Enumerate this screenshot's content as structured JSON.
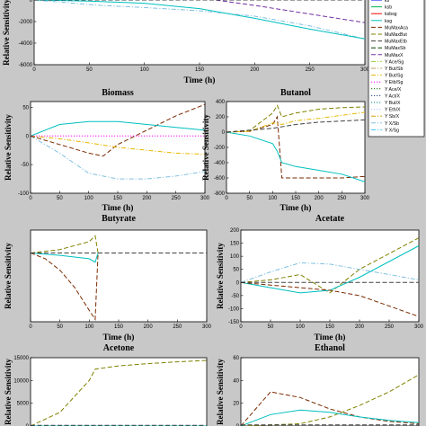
{
  "figure": {
    "background": "#c8c8c8"
  },
  "legend": [
    {
      "label": "ks",
      "color": "#0000ff",
      "dash": "solid"
    },
    {
      "label": "ksb",
      "color": "#00b050",
      "dash": "solid"
    },
    {
      "label": "ksbsg",
      "color": "#ff0000",
      "dash": "solid"
    },
    {
      "label": "ksg",
      "color": "#00bfbf",
      "dash": "solid"
    },
    {
      "label": "MuMaxAca",
      "color": "#7a2a00",
      "dash": "dash"
    },
    {
      "label": "MuMaxBut",
      "color": "#808000",
      "dash": "dash"
    },
    {
      "label": "MuMaxEtb",
      "color": "#404040",
      "dash": "dash"
    },
    {
      "label": "MuMaxSb",
      "color": "#004000",
      "dash": "dash"
    },
    {
      "label": "MuMaxX",
      "color": "#7030a0",
      "dash": "dash"
    },
    {
      "label": "Y Ace/Sg",
      "color": "#9acd32",
      "dash": "dashdot"
    },
    {
      "label": "Y But/Sb",
      "color": "#c0a060",
      "dash": "dashdot"
    },
    {
      "label": "Y But/Sg",
      "color": "#e6b800",
      "dash": "dashdot"
    },
    {
      "label": "Y Etb/Sg",
      "color": "#ff00ff",
      "dash": "dot"
    },
    {
      "label": "Y Ace/X",
      "color": "#006400",
      "dash": "dot"
    },
    {
      "label": "Y Act/X",
      "color": "#1f3b8a",
      "dash": "dot"
    },
    {
      "label": "Y But/X",
      "color": "#008080",
      "dash": "dot"
    },
    {
      "label": "Y Eth/X",
      "color": "#a0c0ff",
      "dash": "dot"
    },
    {
      "label": "Y Sb/X",
      "color": "#d4a000",
      "dash": "dashdot"
    },
    {
      "label": "Y X/Sb",
      "color": "#80c0e0",
      "dash": "dashdot"
    },
    {
      "label": "Y X/Sg",
      "color": "#40c0ff",
      "dash": "dashdot"
    }
  ],
  "chart_data": [
    {
      "type": "line",
      "id": "top",
      "title": "",
      "xlabel": "Time (h)",
      "ylabel": "Relative Sensitivity",
      "xlim": [
        0,
        300
      ],
      "ylim": [
        -6000,
        500
      ],
      "xticks": [
        0,
        50,
        100,
        150,
        200,
        250,
        300
      ],
      "yticks": [
        -6000,
        -4000,
        -2000,
        0
      ],
      "series": [
        {
          "color": "#7030a0",
          "dash": "dash",
          "x": [
            0,
            100,
            150,
            200,
            250,
            300
          ],
          "y": [
            0,
            100,
            200,
            -500,
            -1300,
            -2100
          ]
        },
        {
          "color": "#80c0e0",
          "dash": "dashdot",
          "x": [
            0,
            60,
            100,
            150,
            200,
            250,
            300
          ],
          "y": [
            0,
            -500,
            -700,
            -1000,
            -1500,
            -2400,
            -3600
          ]
        },
        {
          "color": "#00bfbf",
          "dash": "solid",
          "x": [
            0,
            50,
            100,
            150,
            200,
            250,
            300
          ],
          "y": [
            0,
            -100,
            -300,
            -800,
            -1700,
            -2700,
            -3600
          ]
        },
        {
          "color": "#808000",
          "dash": "dash",
          "x": [
            0,
            100,
            150,
            200,
            300
          ],
          "y": [
            0,
            50,
            80,
            100,
            120
          ]
        },
        {
          "color": "#404040",
          "dash": "dash",
          "x": [
            0,
            300
          ],
          "y": [
            0,
            0
          ]
        }
      ]
    },
    {
      "type": "line",
      "id": "biomass",
      "title": "Biomass",
      "xlabel": "Time (h)",
      "ylabel": "Relative Sensitivity",
      "xlim": [
        0,
        300
      ],
      "ylim": [
        -100,
        60
      ],
      "xticks": [
        0,
        50,
        100,
        150,
        200,
        250,
        300
      ],
      "yticks": [
        -100,
        -50,
        0,
        50
      ],
      "series": [
        {
          "color": "#80c0e0",
          "dash": "dashdot",
          "x": [
            0,
            50,
            100,
            150,
            200,
            250,
            300
          ],
          "y": [
            0,
            -30,
            -65,
            -75,
            -75,
            -70,
            -62
          ]
        },
        {
          "color": "#7a2a00",
          "dash": "dash",
          "x": [
            0,
            50,
            100,
            125,
            150,
            200,
            250,
            300
          ],
          "y": [
            0,
            -15,
            -30,
            -35,
            -15,
            10,
            35,
            55
          ]
        },
        {
          "color": "#00bfbf",
          "dash": "solid",
          "x": [
            0,
            50,
            100,
            150,
            200,
            250,
            300
          ],
          "y": [
            0,
            20,
            25,
            25,
            20,
            15,
            10
          ]
        },
        {
          "color": "#e6b800",
          "dash": "dashdot",
          "x": [
            0,
            50,
            100,
            150,
            200,
            250,
            300
          ],
          "y": [
            0,
            -5,
            -12,
            -20,
            -25,
            -30,
            -32
          ]
        },
        {
          "color": "#ff00ff",
          "dash": "dot",
          "x": [
            0,
            300
          ],
          "y": [
            0,
            0
          ]
        }
      ]
    },
    {
      "type": "line",
      "id": "butanol",
      "title": "Butanol",
      "xlabel": "Time (h)",
      "ylabel": "Relative Sensitivity",
      "xlim": [
        0,
        300
      ],
      "ylim": [
        -800,
        400
      ],
      "xticks": [
        0,
        50,
        100,
        150,
        200,
        250,
        300
      ],
      "yticks": [
        -800,
        -600,
        -400,
        -200,
        0,
        200,
        400
      ],
      "series": [
        {
          "color": "#808000",
          "dash": "dash",
          "x": [
            0,
            50,
            100,
            110,
            120,
            150,
            200,
            250,
            300
          ],
          "y": [
            0,
            20,
            250,
            350,
            200,
            250,
            300,
            320,
            330
          ]
        },
        {
          "color": "#7a2a00",
          "dash": "dash",
          "x": [
            0,
            50,
            100,
            110,
            120,
            150,
            200,
            250,
            300
          ],
          "y": [
            0,
            10,
            100,
            200,
            -600,
            -600,
            -600,
            -600,
            -580
          ]
        },
        {
          "color": "#00bfbf",
          "dash": "solid",
          "x": [
            0,
            50,
            100,
            110,
            120,
            150,
            200,
            250,
            300
          ],
          "y": [
            0,
            -50,
            -150,
            -250,
            -400,
            -450,
            -500,
            -550,
            -650
          ]
        },
        {
          "color": "#e6b800",
          "dash": "dashdot",
          "x": [
            0,
            50,
            100,
            120,
            150,
            200,
            250,
            300
          ],
          "y": [
            0,
            10,
            120,
            100,
            150,
            180,
            220,
            260
          ]
        },
        {
          "color": "#404040",
          "dash": "dash",
          "x": [
            0,
            100,
            150,
            200,
            300
          ],
          "y": [
            0,
            50,
            100,
            130,
            160
          ]
        }
      ]
    },
    {
      "type": "line",
      "id": "butyrate",
      "title": "Butyrate",
      "xlabel": "Time (h)",
      "ylabel": "Relative Sensitivity",
      "xlim": [
        0,
        300
      ],
      "ylim": [
        -600,
        200
      ],
      "xticks": [
        0,
        50,
        100,
        150,
        200,
        250,
        300
      ],
      "yticks": [],
      "series": [
        {
          "color": "#7a2a00",
          "dash": "dash",
          "x": [
            0,
            25,
            50,
            75,
            100,
            110,
            115
          ],
          "y": [
            0,
            -50,
            -150,
            -300,
            -500,
            -580,
            0
          ]
        },
        {
          "color": "#808000",
          "dash": "dash",
          "x": [
            0,
            50,
            100,
            110,
            115
          ],
          "y": [
            0,
            30,
            100,
            150,
            0
          ]
        },
        {
          "color": "#00bfbf",
          "dash": "solid",
          "x": [
            0,
            50,
            100,
            110,
            115
          ],
          "y": [
            0,
            -20,
            -50,
            -80,
            0
          ]
        },
        {
          "color": "#404040",
          "dash": "dash",
          "x": [
            0,
            300
          ],
          "y": [
            0,
            0
          ]
        }
      ]
    },
    {
      "type": "line",
      "id": "acetate",
      "title": "Acetate",
      "xlabel": "Time (h)",
      "ylabel": "Relative Sensitivity",
      "xlim": [
        0,
        300
      ],
      "ylim": [
        -150,
        200
      ],
      "xticks": [
        0,
        50,
        100,
        150,
        200,
        250,
        300
      ],
      "yticks": [
        -150,
        -100,
        -50,
        0,
        50,
        100,
        150,
        200
      ],
      "series": [
        {
          "color": "#808000",
          "dash": "dash",
          "x": [
            0,
            50,
            100,
            150,
            200,
            250,
            300
          ],
          "y": [
            0,
            10,
            30,
            -40,
            50,
            110,
            170
          ]
        },
        {
          "color": "#00bfbf",
          "dash": "solid",
          "x": [
            0,
            50,
            100,
            150,
            200,
            250,
            300
          ],
          "y": [
            0,
            -20,
            -40,
            -30,
            20,
            80,
            140
          ]
        },
        {
          "color": "#80c0e0",
          "dash": "dashdot",
          "x": [
            0,
            50,
            100,
            150,
            200,
            250,
            300
          ],
          "y": [
            0,
            40,
            75,
            70,
            50,
            30,
            10
          ]
        },
        {
          "color": "#7a2a00",
          "dash": "dash",
          "x": [
            0,
            50,
            100,
            150,
            200,
            250,
            300
          ],
          "y": [
            0,
            -10,
            -20,
            -30,
            -50,
            -90,
            -130
          ]
        },
        {
          "color": "#404040",
          "dash": "dash",
          "x": [
            0,
            300
          ],
          "y": [
            0,
            0
          ]
        }
      ]
    },
    {
      "type": "line",
      "id": "acetone",
      "title": "Acetone",
      "xlabel": "Time (h)",
      "ylabel": "Relative Sensitivity",
      "xlim": [
        0,
        300
      ],
      "ylim": [
        0,
        15000
      ],
      "xticks": [
        0,
        50,
        100,
        150,
        200,
        250,
        300
      ],
      "yticks": [
        0,
        5000,
        10000,
        15000
      ],
      "series": [
        {
          "color": "#808000",
          "dash": "dash",
          "x": [
            0,
            50,
            100,
            110,
            150,
            200,
            250,
            300
          ],
          "y": [
            0,
            3000,
            10000,
            12500,
            13200,
            13700,
            14100,
            14400
          ]
        },
        {
          "color": "#00bfbf",
          "dash": "solid",
          "x": [
            0,
            300
          ],
          "y": [
            0,
            0
          ]
        },
        {
          "color": "#404040",
          "dash": "dash",
          "x": [
            0,
            300
          ],
          "y": [
            150,
            150
          ]
        }
      ]
    },
    {
      "type": "line",
      "id": "ethanol",
      "title": "Ethanol",
      "xlabel": "Time (h)",
      "ylabel": "Relative Sensitivity",
      "xlim": [
        0,
        300
      ],
      "ylim": [
        0,
        60
      ],
      "xticks": [
        0,
        50,
        100,
        150,
        200,
        250,
        300
      ],
      "yticks": [
        0,
        20,
        40,
        60
      ],
      "series": [
        {
          "color": "#7a2a00",
          "dash": "dash",
          "x": [
            0,
            50,
            100,
            150,
            200,
            250,
            300
          ],
          "y": [
            0,
            30,
            25,
            15,
            8,
            4,
            2
          ]
        },
        {
          "color": "#808000",
          "dash": "dash",
          "x": [
            0,
            100,
            150,
            200,
            250,
            300
          ],
          "y": [
            0,
            2,
            8,
            18,
            30,
            45
          ]
        },
        {
          "color": "#00bfbf",
          "dash": "solid",
          "x": [
            0,
            50,
            100,
            150,
            200,
            250,
            300
          ],
          "y": [
            0,
            10,
            14,
            12,
            8,
            5,
            3
          ]
        },
        {
          "color": "#404040",
          "dash": "dash",
          "x": [
            0,
            300
          ],
          "y": [
            1,
            1
          ]
        }
      ]
    }
  ]
}
